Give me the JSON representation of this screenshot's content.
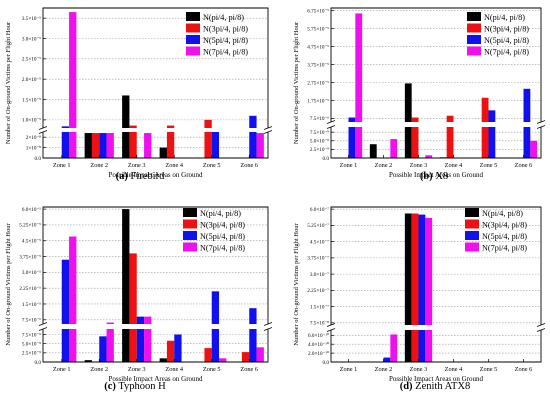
{
  "figure": {
    "colors": {
      "pi4": "#000000",
      "3pi4": "#ee1111",
      "5pi4": "#1111ee",
      "7pi4": "#ee11ee"
    }
  },
  "chart_data": [
    {
      "type": "bar",
      "caption_letter": "(a)",
      "caption_text": " Firebird",
      "xlabel": "Possible Impact Areas on Ground",
      "ylabel": "Number of On-ground Victims per Flight Hour",
      "categories": [
        "Zone 1",
        "Zone 2",
        "Zone 3",
        "Zone 4",
        "Zone 5",
        "Zone 6"
      ],
      "axis_break": true,
      "lower_ylim": [
        0,
        2.5e-08
      ],
      "upper_ylim": [
        8e-06,
        3.75e-05
      ],
      "lower_ticks": [
        "0.0",
        "1×10⁻⁸",
        "2×10⁻⁸"
      ],
      "upper_ticks": [
        "1.0×10⁻⁵",
        "1.5×10⁻⁵",
        "2.0×10⁻⁵",
        "2.5×10⁻⁵",
        "3.0×10⁻⁵",
        "3.5×10⁻⁵"
      ],
      "upper_tick_values": [
        1e-05,
        1.5e-05,
        2e-05,
        2.5e-05,
        3e-05,
        3.5e-05
      ],
      "series": [
        {
          "name": "N(pi/4, pi/8)",
          "values": [
            0,
            2.4e-08,
            1.6e-05,
            1e-08,
            0,
            0
          ]
        },
        {
          "name": "N(3pi/4, pi/8)",
          "values": [
            0,
            2.4e-08,
            8.6e-06,
            8.6e-06,
            1e-05,
            0
          ]
        },
        {
          "name": "N(5pi/4, pi/8)",
          "values": [
            8.4e-06,
            2.4e-08,
            0,
            0,
            5.6e-06,
            1.1e-05
          ]
        },
        {
          "name": "N(7pi/4, pi/8)",
          "values": [
            3.65e-05,
            2.4e-08,
            2.4e-08,
            0,
            0,
            2.4e-08
          ]
        }
      ]
    },
    {
      "type": "bar",
      "caption_letter": "(b)",
      "caption_text": " X8",
      "xlabel": "Possible Impact Areas on Ground",
      "ylabel": "Number of On-ground Victims per Flight Hour",
      "categories": [
        "Zone 1",
        "Zone 2",
        "Zone 3",
        "Zone 4",
        "Zone 5",
        "Zone 6"
      ],
      "axis_break": true,
      "lower_ylim": [
        0,
        9e-09
      ],
      "upper_ylim": [
        5.5e-06,
        6.9e-05
      ],
      "lower_ticks": [
        "0.0",
        "2.5×10⁻⁹",
        "5.0×10⁻⁹",
        "7.5×10⁻⁹"
      ],
      "upper_ticks": [
        "7.5×10⁻⁶",
        "1.75×10⁻⁵",
        "2.75×10⁻⁵",
        "3.75×10⁻⁵",
        "4.75×10⁻⁵",
        "5.75×10⁻⁵",
        "6.75×10⁻⁵"
      ],
      "upper_tick_values": [
        7.5e-06,
        1.75e-05,
        2.75e-05,
        3.75e-05,
        4.75e-05,
        5.75e-05,
        6.75e-05
      ],
      "series": [
        {
          "name": "N(pi/4, pi/8)",
          "values": [
            0,
            4e-09,
            2.7e-05,
            2e-10,
            0,
            0
          ]
        },
        {
          "name": "N(3pi/4, pi/8)",
          "values": [
            0,
            0,
            8e-06,
            9e-06,
            1.9e-05,
            0
          ]
        },
        {
          "name": "N(5pi/4, pi/8)",
          "values": [
            8e-06,
            0,
            0,
            0,
            1.2e-05,
            2.4e-05
          ]
        },
        {
          "name": "N(7pi/4, pi/8)",
          "values": [
            6.6e-05,
            5.5e-09,
            8e-10,
            0,
            0,
            5e-09
          ]
        }
      ]
    },
    {
      "type": "bar",
      "caption_letter": "(c)",
      "caption_text": " Typhoon H",
      "xlabel": "Possible Impact Areas on Ground",
      "ylabel": "Number of On-ground Victims per Flight Hour",
      "categories": [
        "Zone 1",
        "Zone 2",
        "Zone 3",
        "Zone 4",
        "Zone 5",
        "Zone 6"
      ],
      "axis_break": true,
      "lower_ylim": [
        0,
        9e-09
      ],
      "upper_ylim": [
        5.5e-06,
        6.1e-05
      ],
      "lower_ticks": [
        "0.0",
        "2.5×10⁻⁹",
        "5.0×10⁻⁹",
        "7.5×10⁻⁹"
      ],
      "upper_ticks": [
        "7.5×10⁻⁶",
        "1.5×10⁻⁵",
        "2.25×10⁻⁵",
        "3.0×10⁻⁵",
        "3.75×10⁻⁵",
        "4.5×10⁻⁵",
        "5.25×10⁻⁵",
        "6.0×10⁻⁵"
      ],
      "upper_tick_values": [
        7.5e-06,
        1.5e-05,
        2.25e-05,
        3e-05,
        3.75e-05,
        4.5e-05,
        5.25e-05,
        6e-05
      ],
      "series": [
        {
          "name": "N(pi/4, pi/8)",
          "values": [
            0,
            5e-10,
            6e-05,
            1e-09,
            0,
            0
          ]
        },
        {
          "name": "N(3pi/4, pi/8)",
          "values": [
            0,
            0,
            3.9e-05,
            5.8e-09,
            3.8e-09,
            2.7e-09
          ]
        },
        {
          "name": "N(5pi/4, pi/8)",
          "values": [
            3.6e-05,
            7e-09,
            9e-06,
            7.5e-09,
            2.1e-05,
            1.3e-05
          ]
        },
        {
          "name": "N(7pi/4, pi/8)",
          "values": [
            4.7e-05,
            6.2e-06,
            9e-06,
            0,
            1e-09,
            4e-09
          ]
        }
      ]
    },
    {
      "type": "bar",
      "caption_letter": "(d)",
      "caption_text": " Zenith ATX8",
      "xlabel": "Possible Impact Areas on Ground",
      "ylabel": "Number of On-ground Victims per Flight Hour",
      "categories": [
        "Zone 1",
        "Zone 2",
        "Zone 3",
        "Zone 4",
        "Zone 5",
        "Zone 6"
      ],
      "axis_break": true,
      "lower_ylim": [
        0,
        7.2e-10
      ],
      "upper_ylim": [
        6.5e-08,
        6.1e-07
      ],
      "lower_ticks": [
        "0.0",
        "2.0×10⁻¹⁰",
        "4.0×10⁻¹⁰",
        "6.0×10⁻¹⁰"
      ],
      "upper_ticks": [
        "7.5×10⁻⁸",
        "1.5×10⁻⁷",
        "2.25×10⁻⁷",
        "3.0×10⁻⁷",
        "3.75×10⁻⁷",
        "4.5×10⁻⁷",
        "5.25×10⁻⁷",
        "6.0×10⁻⁷"
      ],
      "upper_tick_values": [
        7.5e-08,
        1.5e-07,
        2.25e-07,
        3e-07,
        3.75e-07,
        4.5e-07,
        5.25e-07,
        6e-07
      ],
      "series": [
        {
          "name": "N(pi/4, pi/8)",
          "values": [
            0,
            0,
            5.8e-07,
            0,
            0,
            0
          ]
        },
        {
          "name": "N(3pi/4, pi/8)",
          "values": [
            0,
            0,
            5.8e-07,
            0,
            0,
            0
          ]
        },
        {
          "name": "N(5pi/4, pi/8)",
          "values": [
            0,
            1e-10,
            5.75e-07,
            0,
            0,
            0
          ]
        },
        {
          "name": "N(7pi/4, pi/8)",
          "values": [
            0,
            6.2e-10,
            5.6e-07,
            0,
            0,
            0
          ]
        }
      ]
    }
  ]
}
